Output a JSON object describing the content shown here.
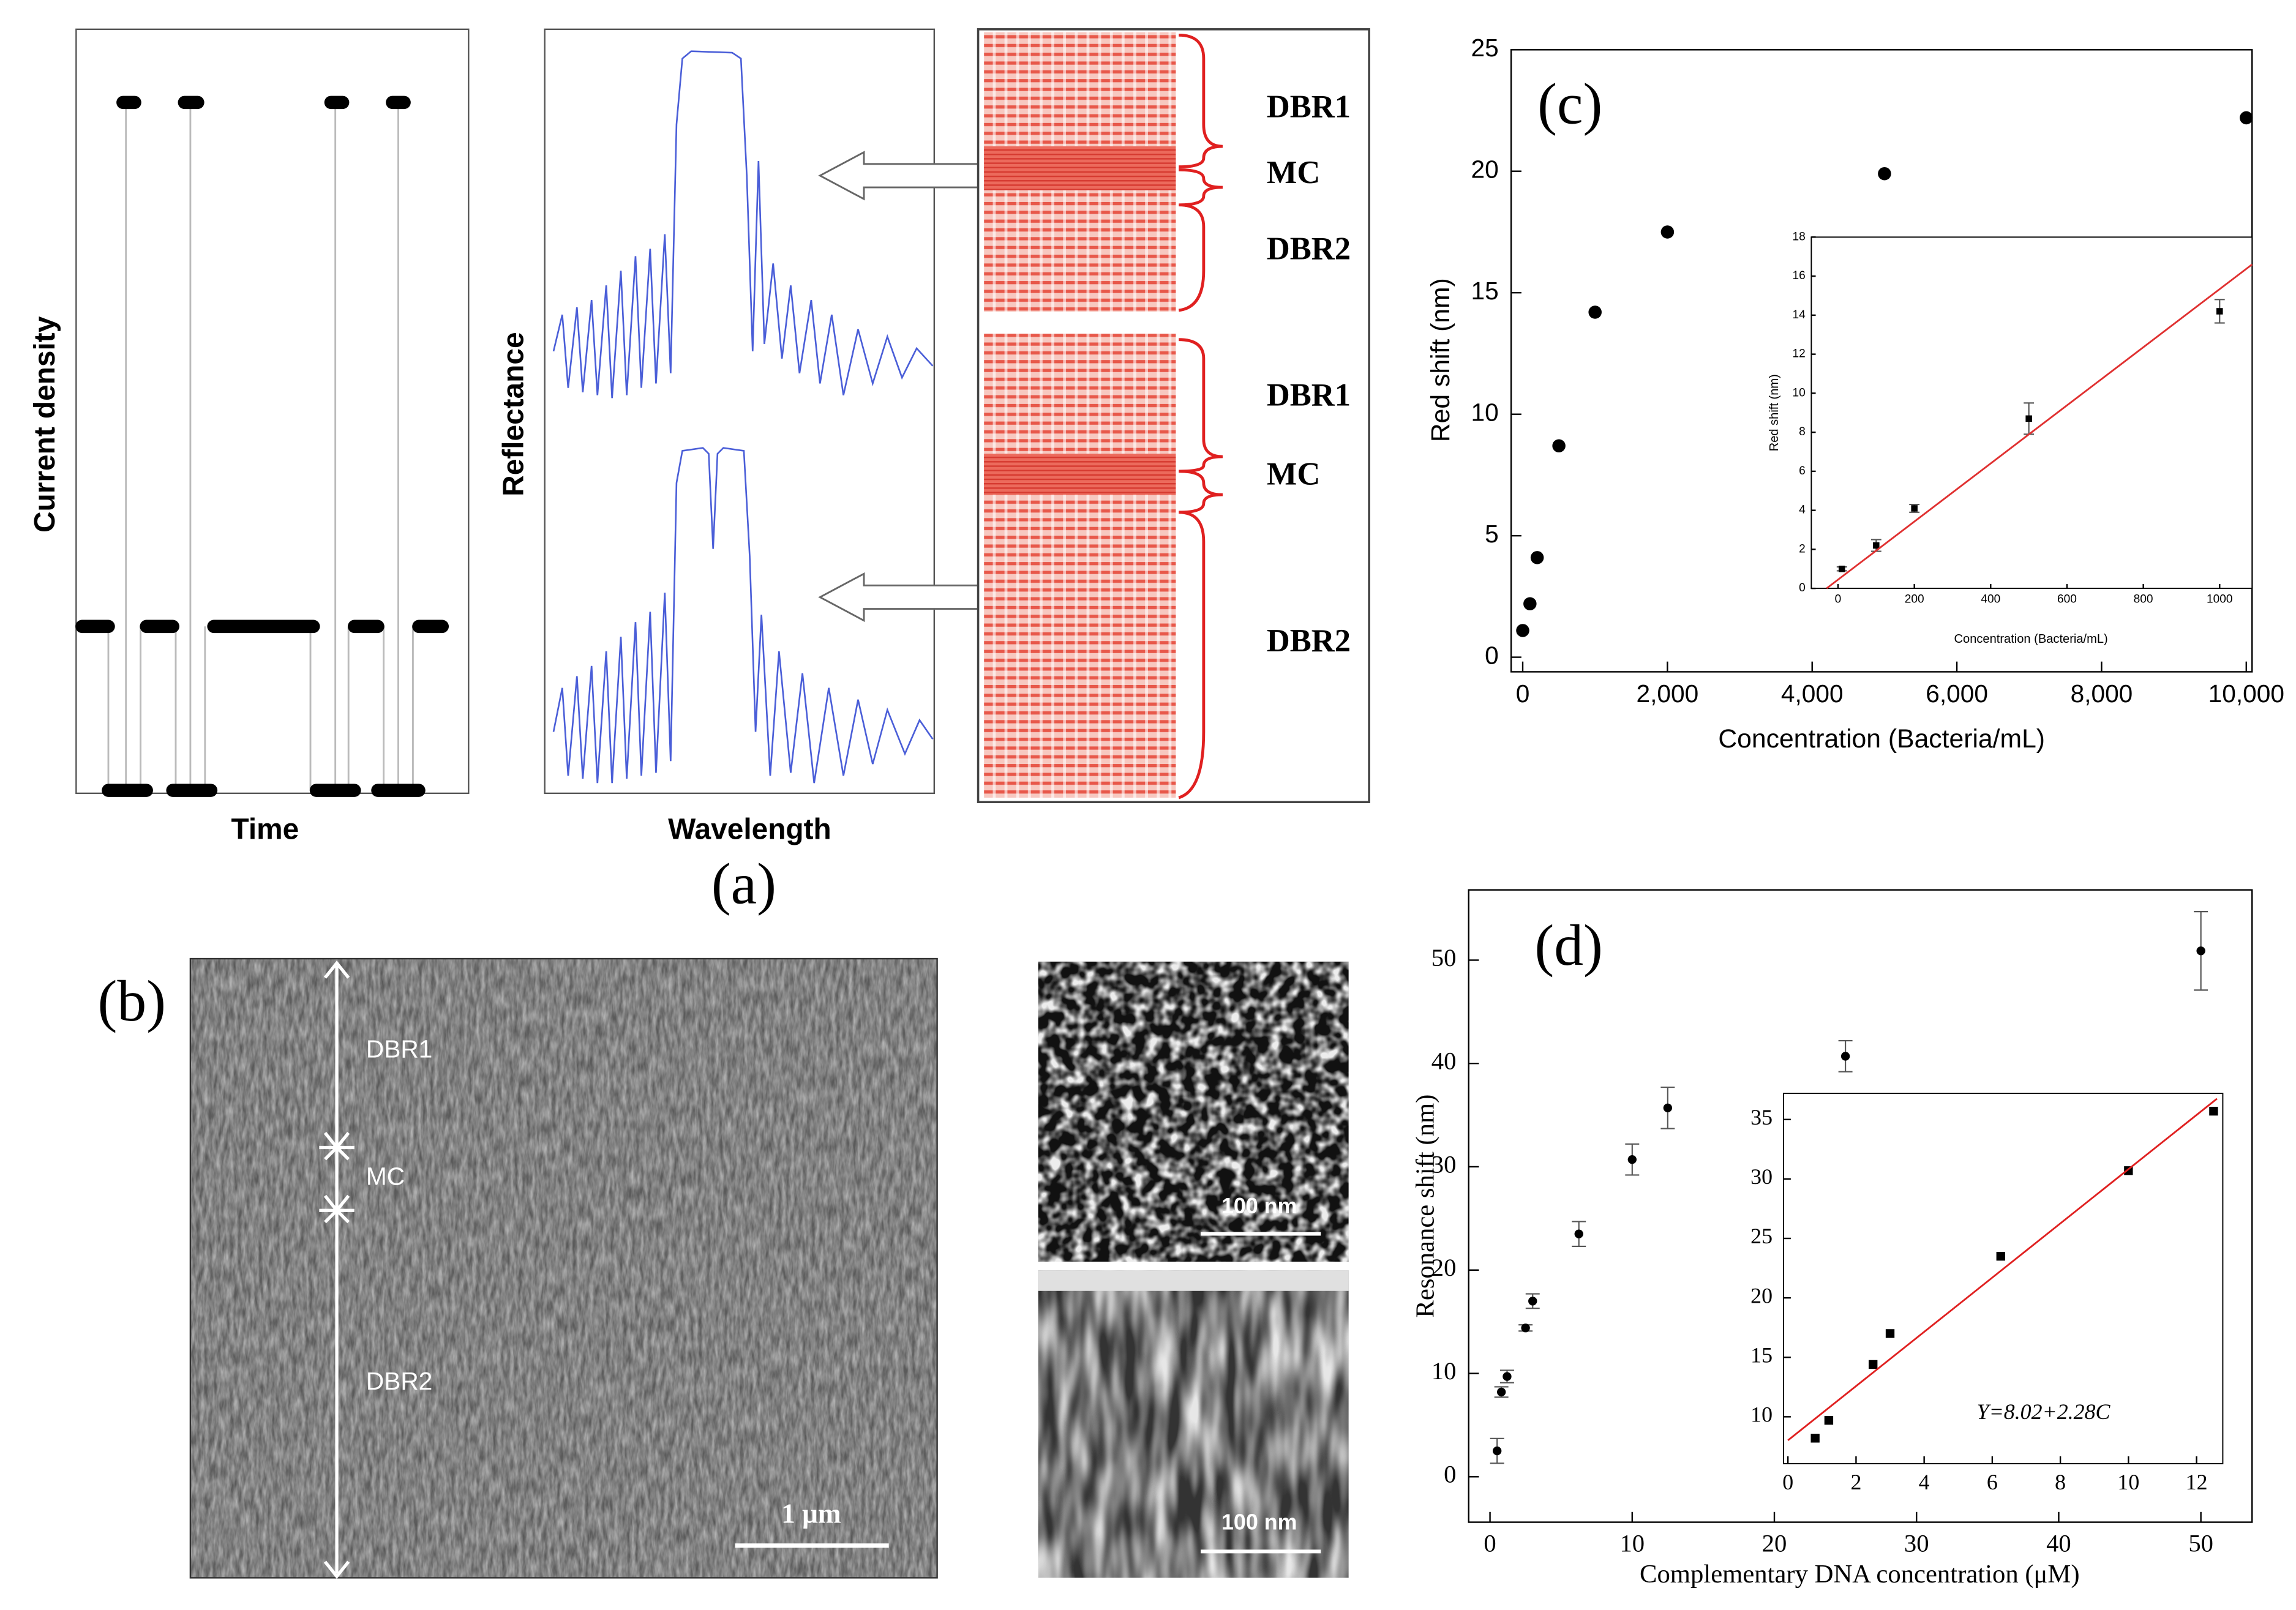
{
  "panel_a": {
    "label": "(a)",
    "current_axis": "Current density",
    "time_axis": "Time",
    "reflectance_axis": "Reflectance",
    "wavelength_axis": "Wavelength",
    "top_layers": [
      "DBR1",
      "MC",
      "DBR2"
    ],
    "bottom_layers": [
      "DBR1",
      "MC",
      "DBR2"
    ]
  },
  "panel_b": {
    "label": "(b)",
    "layers": [
      "DBR1",
      "MC",
      "DBR2"
    ],
    "scale_main": "1 μm",
    "scale_top": "100 nm",
    "scale_bottom": "100 nm"
  },
  "chart_data": [
    {
      "type": "scatter",
      "annotation": "(c)",
      "x_label": "Concentration (Bacteria/mL)",
      "y_label": "Red shift (nm)",
      "xlim": [
        -160,
        10080
      ],
      "ylim": [
        -0.6,
        25
      ],
      "xticks": [
        0,
        {
          "value": 2000,
          "label": "2,000"
        },
        {
          "value": 4000,
          "label": "4,000"
        },
        {
          "value": 6000,
          "label": "6,000"
        },
        {
          "value": 8000,
          "label": "8,000"
        },
        {
          "value": 10000,
          "label": "10,000"
        }
      ],
      "yticks": [
        0,
        5,
        10,
        15,
        20,
        25
      ],
      "series": [
        {
          "color": "#000000",
          "marker": "circle",
          "x": [
            0,
            100,
            200,
            500,
            1000,
            2000,
            5000,
            10000
          ],
          "values": [
            1.1,
            2.2,
            4.1,
            8.7,
            14.2,
            17.5,
            19.9,
            22.2
          ]
        }
      ]
    },
    {
      "type": "scatter",
      "x_label": "Concentration (Bacteria/mL)",
      "y_label": "Red shift (nm)",
      "xlim": [
        -70,
        1085
      ],
      "ylim": [
        0,
        18
      ],
      "xticks": [
        0,
        200,
        400,
        600,
        800,
        1000
      ],
      "yticks": [
        0,
        2,
        4,
        6,
        8,
        10,
        12,
        14,
        16,
        18
      ],
      "series": [
        {
          "color": "#000000",
          "marker": "square",
          "x": [
            10,
            100,
            200,
            500,
            1000
          ],
          "values": [
            1.0,
            2.2,
            4.1,
            8.7,
            14.2
          ],
          "errors": [
            0.1,
            0.3,
            0.2,
            0.8,
            0.6
          ]
        },
        {
          "color": "#e03030",
          "type": "line",
          "x": [
            -30,
            1085
          ],
          "values": [
            0,
            16.6
          ]
        }
      ]
    },
    {
      "type": "scatter",
      "annotation": "(d)",
      "x_label": "Complementary DNA concentration (μM)",
      "y_label": "Resonance shift (nm)",
      "xlim": [
        -1.5,
        53.6
      ],
      "ylim": [
        -4.4,
        56.8
      ],
      "xticks": [
        0,
        10,
        20,
        30,
        40,
        50
      ],
      "yticks": [
        0,
        10,
        20,
        30,
        40,
        50
      ],
      "series": [
        {
          "color": "#000000",
          "marker": "circle",
          "x": [
            0.5,
            0.8,
            1.2,
            2.5,
            3,
            6.25,
            10,
            12.5,
            25,
            50
          ],
          "values": [
            2.5,
            8.2,
            9.7,
            14.4,
            17,
            23.5,
            30.7,
            35.7,
            40.7,
            50.9
          ],
          "errors": [
            1.2,
            0.5,
            0.6,
            0.3,
            0.7,
            1.2,
            1.5,
            2,
            1.5,
            3.8
          ]
        }
      ]
    },
    {
      "type": "scatter",
      "annotation": "Y=8.02+2.28C",
      "xlim": [
        -0.13,
        12.77
      ],
      "ylim": [
        6.06,
        37.2
      ],
      "xticks": [
        0,
        2,
        4,
        6,
        8,
        10,
        12
      ],
      "yticks": [
        10,
        15,
        20,
        25,
        30,
        35
      ],
      "series": [
        {
          "color": "#000000",
          "marker": "square",
          "x": [
            0.8,
            1.2,
            2.5,
            3,
            6.25,
            10,
            12.5
          ],
          "values": [
            8.2,
            9.7,
            14.4,
            17,
            23.5,
            30.7,
            35.7
          ]
        },
        {
          "color": "#e02020",
          "type": "line",
          "x": [
            0,
            12.6
          ],
          "values": [
            8.02,
            36.75
          ]
        }
      ]
    }
  ]
}
